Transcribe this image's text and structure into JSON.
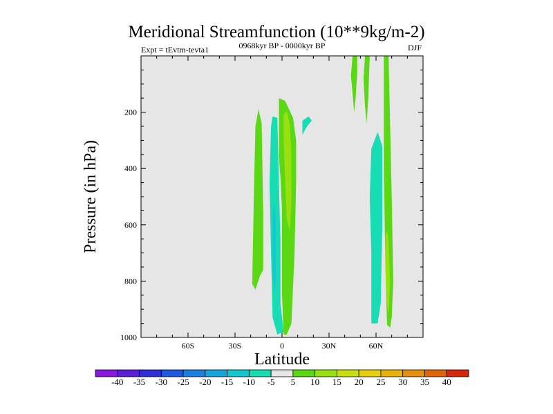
{
  "colors": {
    "background": "#e6e6e6",
    "frame": "#000000"
  },
  "chart_data": {
    "type": "contour",
    "title": "Meridional Streamfunction (10**9kg/m-2)",
    "subtitle_left": "Expt = tEvtm-tevta1",
    "subtitle_center": "0968kyr BP - 0000kyr BP",
    "subtitle_right": "DJF",
    "xlabel": "Latitude",
    "ylabel": "Pressure (in hPa)",
    "xlim": [
      -90,
      90
    ],
    "ylim": [
      0,
      1000
    ],
    "y_inverted": true,
    "x_ticks": [
      {
        "value": -60,
        "label": "60S"
      },
      {
        "value": -30,
        "label": "30S"
      },
      {
        "value": 0,
        "label": "0"
      },
      {
        "value": 30,
        "label": "30N"
      },
      {
        "value": 60,
        "label": "60N"
      }
    ],
    "y_ticks": [
      {
        "value": 200,
        "label": "200"
      },
      {
        "value": 400,
        "label": "400"
      },
      {
        "value": 600,
        "label": "600"
      },
      {
        "value": 800,
        "label": "800"
      },
      {
        "value": 1000,
        "label": "1000"
      }
    ],
    "colorbar": {
      "labels": [
        "-40",
        "-35",
        "-30",
        "-25",
        "-20",
        "-15",
        "-10",
        "-5",
        "5",
        "10",
        "15",
        "20",
        "25",
        "30",
        "35",
        "40"
      ],
      "colors": [
        "#8a18e0",
        "#5b1ed6",
        "#2f2fd8",
        "#1f5ae0",
        "#1a80e0",
        "#16a6dc",
        "#14c8d2",
        "#18dcb4",
        "#e6e6e6",
        "#5ad814",
        "#98e010",
        "#c8e010",
        "#e8d00c",
        "#e8b40c",
        "#e69010",
        "#e0660c",
        "#d8280c"
      ]
    },
    "regions": [
      {
        "label": "negative cell near 60N",
        "value": -7,
        "color": "#18dcb4",
        "points": [
          [
            57,
            950
          ],
          [
            57,
            700
          ],
          [
            56,
            500
          ],
          [
            57,
            330
          ],
          [
            61,
            270
          ],
          [
            64,
            320
          ],
          [
            64,
            600
          ],
          [
            63,
            880
          ],
          [
            61,
            950
          ]
        ]
      },
      {
        "label": "positive cell over 0",
        "value": 7,
        "color": "#5ad814",
        "points": [
          [
            -2,
            360
          ],
          [
            -2,
            150
          ],
          [
            2,
            160
          ],
          [
            7,
            220
          ],
          [
            9,
            300
          ],
          [
            9,
            450
          ],
          [
            8,
            700
          ],
          [
            6,
            950
          ],
          [
            3,
            990
          ],
          [
            1,
            990
          ],
          [
            0,
            850
          ],
          [
            0,
            550
          ],
          [
            -1,
            430
          ]
        ]
      },
      {
        "label": "positive core over 0",
        "value": 12,
        "color": "#98e010",
        "points": [
          [
            1,
            210
          ],
          [
            3,
            195
          ],
          [
            5,
            240
          ],
          [
            6,
            350
          ],
          [
            6,
            520
          ],
          [
            5,
            620
          ],
          [
            3,
            580
          ],
          [
            2,
            440
          ],
          [
            1,
            300
          ]
        ]
      },
      {
        "label": "negative cell near 5S",
        "value": -7,
        "color": "#18dcb4",
        "points": [
          [
            -7,
            250
          ],
          [
            -6,
            215
          ],
          [
            -3,
            220
          ],
          [
            -2,
            460
          ],
          [
            -1,
            650
          ],
          [
            -1,
            880
          ],
          [
            1,
            980
          ],
          [
            -3,
            990
          ],
          [
            -6,
            930
          ],
          [
            -7,
            700
          ],
          [
            -8,
            450
          ]
        ]
      },
      {
        "label": "negative core near 5S",
        "value": -12,
        "color": "#14c8d2",
        "points": [
          [
            -6,
            560
          ],
          [
            -5,
            520
          ],
          [
            -4,
            580
          ],
          [
            -4,
            800
          ],
          [
            -5,
            840
          ],
          [
            -6,
            760
          ]
        ]
      },
      {
        "label": "positive cell near 15S",
        "value": 7,
        "color": "#5ad814",
        "points": [
          [
            -19,
            810
          ],
          [
            -18,
            500
          ],
          [
            -17,
            250
          ],
          [
            -15,
            190
          ],
          [
            -13,
            240
          ],
          [
            -12,
            550
          ],
          [
            -12,
            760
          ],
          [
            -14,
            780
          ],
          [
            -17,
            830
          ]
        ]
      },
      {
        "label": "negative patch near 15N",
        "value": -7,
        "color": "#18dcb4",
        "points": [
          [
            13,
            280
          ],
          [
            13,
            230
          ],
          [
            17,
            215
          ],
          [
            19,
            230
          ],
          [
            16,
            250
          ]
        ]
      },
      {
        "label": "positive cell near 45N upper",
        "value": 7,
        "color": "#5ad814",
        "points": [
          [
            45,
            0
          ],
          [
            48,
            0
          ],
          [
            48,
            60
          ],
          [
            47,
            150
          ],
          [
            46,
            200
          ],
          [
            45,
            130
          ],
          [
            44,
            70
          ]
        ]
      },
      {
        "label": "positive cell near 55N upper",
        "value": 7,
        "color": "#5ad814",
        "points": [
          [
            53,
            0
          ],
          [
            56,
            0
          ],
          [
            55,
            150
          ],
          [
            54,
            240
          ],
          [
            53,
            180
          ],
          [
            52,
            80
          ]
        ]
      },
      {
        "label": "positive cell near 67N",
        "value": 7,
        "color": "#5ad814",
        "points": [
          [
            65,
            0
          ],
          [
            68,
            0
          ],
          [
            69,
            250
          ],
          [
            70,
            500
          ],
          [
            71,
            800
          ],
          [
            70,
            930
          ],
          [
            69,
            965
          ],
          [
            67,
            955
          ],
          [
            66,
            750
          ],
          [
            65,
            400
          ]
        ]
      },
      {
        "label": "positive core near 68N",
        "value": 12,
        "color": "#98e010",
        "points": [
          [
            66,
            640
          ],
          [
            67,
            620
          ],
          [
            68,
            660
          ],
          [
            69,
            800
          ],
          [
            68,
            920
          ],
          [
            67,
            880
          ],
          [
            66,
            760
          ]
        ]
      }
    ]
  }
}
